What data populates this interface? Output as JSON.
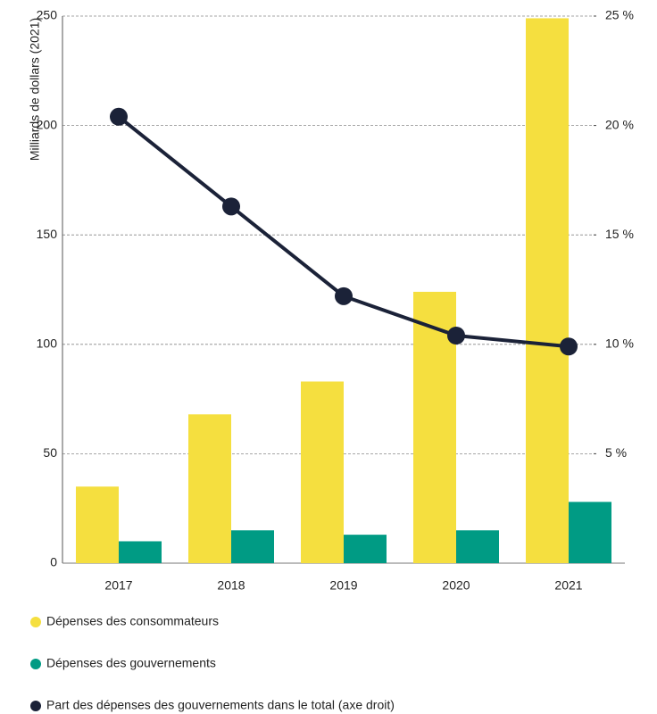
{
  "chart_data": {
    "type": "bar",
    "ylabel": "Milliards de dollars (2021)",
    "categories": [
      "2017",
      "2018",
      "2019",
      "2020",
      "2021"
    ],
    "series": [
      {
        "name": "Dépenses des consommateurs",
        "color": "#f5df3f",
        "values": [
          35,
          68,
          83,
          124,
          249
        ]
      },
      {
        "name": "Dépenses des gouvernements",
        "color": "#009b84",
        "values": [
          10,
          15,
          13,
          15,
          28
        ]
      },
      {
        "name": "Part des dépenses des gouvernements dans le total (axe droit)",
        "color": "#1b2238",
        "type": "line",
        "axis": "y2",
        "values": [
          20.4,
          16.3,
          12.2,
          10.4,
          9.9
        ]
      }
    ],
    "ylim": [
      0,
      250
    ],
    "yticks": [
      0,
      50,
      100,
      150,
      200,
      250
    ],
    "y2lim": [
      0,
      25
    ],
    "y2ticks": [
      {
        "value": 5,
        "label": "5 %"
      },
      {
        "value": 10,
        "label": "10 %"
      },
      {
        "value": 15,
        "label": "15 %"
      },
      {
        "value": 20,
        "label": "20 %"
      },
      {
        "value": 25,
        "label": "25 %"
      }
    ],
    "grid": true
  }
}
